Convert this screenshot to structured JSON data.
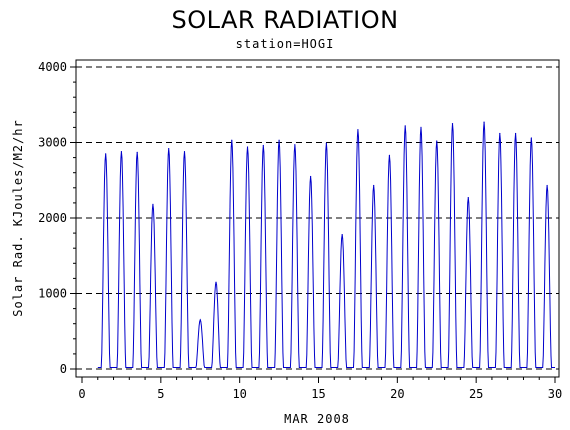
{
  "chart_data": {
    "type": "line",
    "title": "SOLAR RADIATION",
    "subtitle": "station=HOGI",
    "xlabel": "MAR 2008",
    "ylabel": "Solar Rad. KJoules/M2/hr",
    "xlim": [
      0,
      30
    ],
    "ylim": [
      0,
      4000
    ],
    "x_ticks": [
      0,
      5,
      10,
      15,
      20,
      25,
      30
    ],
    "y_ticks": [
      0,
      1000,
      2000,
      3000,
      4000
    ],
    "grid": "horizontal dashed",
    "line_color": "#0000cc",
    "daily_peaks": [
      {
        "day": 1.5,
        "peak": 2850
      },
      {
        "day": 2.5,
        "peak": 2880
      },
      {
        "day": 3.5,
        "peak": 2870
      },
      {
        "day": 4.5,
        "peak": 2180
      },
      {
        "day": 5.5,
        "peak": 2920
      },
      {
        "day": 6.5,
        "peak": 2880
      },
      {
        "day": 7.5,
        "peak": 650
      },
      {
        "day": 8.5,
        "peak": 1150
      },
      {
        "day": 9.5,
        "peak": 3030
      },
      {
        "day": 10.5,
        "peak": 2940
      },
      {
        "day": 11.5,
        "peak": 2960
      },
      {
        "day": 12.5,
        "peak": 3030
      },
      {
        "day": 13.5,
        "peak": 2970
      },
      {
        "day": 14.5,
        "peak": 2550
      },
      {
        "day": 15.5,
        "peak": 2990
      },
      {
        "day": 16.5,
        "peak": 1780
      },
      {
        "day": 17.5,
        "peak": 3170
      },
      {
        "day": 18.5,
        "peak": 2430
      },
      {
        "day": 19.5,
        "peak": 2830
      },
      {
        "day": 20.5,
        "peak": 3220
      },
      {
        "day": 21.5,
        "peak": 3200
      },
      {
        "day": 22.5,
        "peak": 3020
      },
      {
        "day": 23.5,
        "peak": 3250
      },
      {
        "day": 24.5,
        "peak": 2270
      },
      {
        "day": 25.5,
        "peak": 3270
      },
      {
        "day": 26.5,
        "peak": 3120
      },
      {
        "day": 27.5,
        "peak": 3120
      },
      {
        "day": 28.5,
        "peak": 3060
      },
      {
        "day": 29.5,
        "peak": 2430
      }
    ]
  }
}
